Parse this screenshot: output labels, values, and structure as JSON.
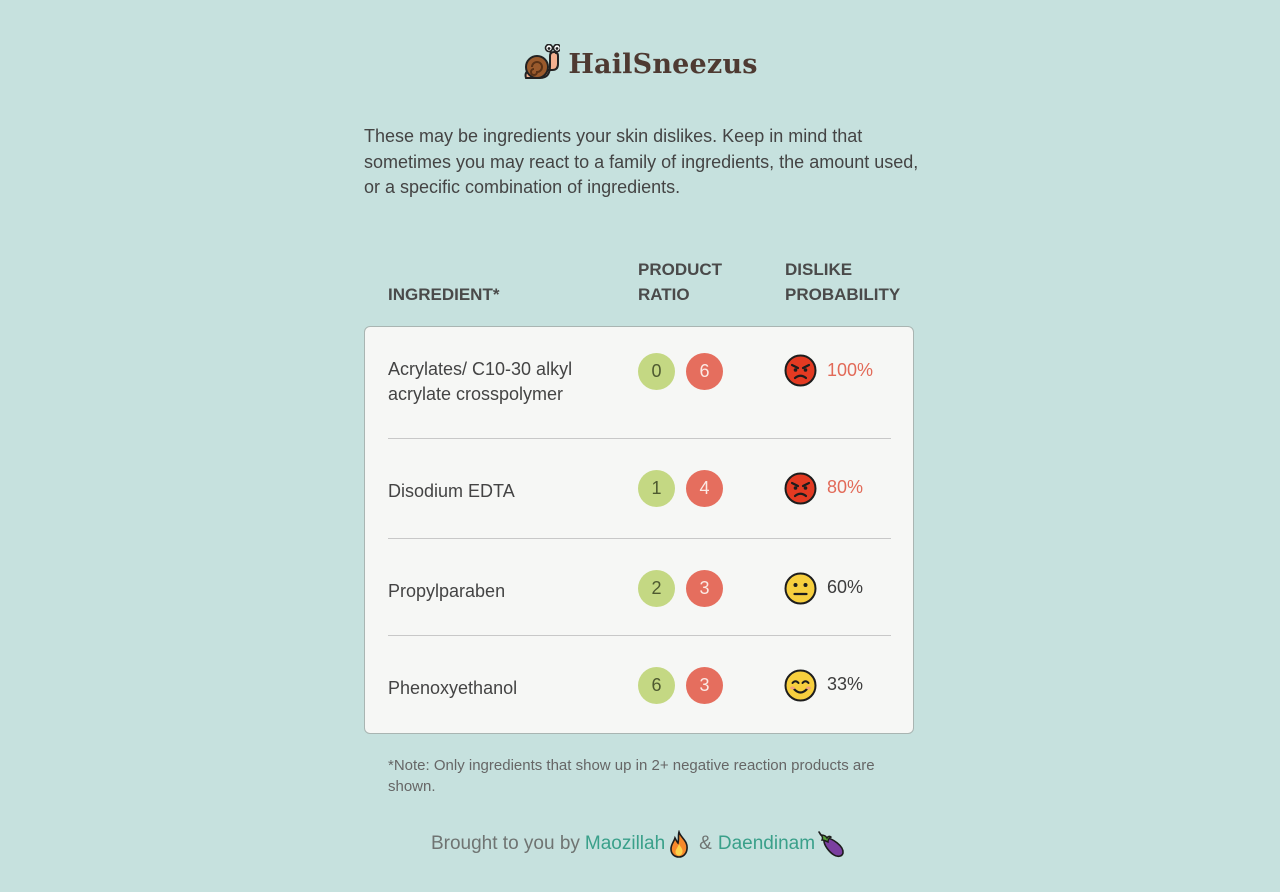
{
  "header": {
    "app_name": "HailSneezus",
    "logo_icon": "snail-icon"
  },
  "intro_text": "These may be ingredients your skin dislikes. Keep in mind that sometimes you may react to a family of ingredients, the amount used, or a specific combination of ingredients.",
  "table": {
    "headers": {
      "ingredient": "INGREDIENT*",
      "product_ratio_line1": "PRODUCT",
      "product_ratio_line2": "RATIO",
      "dislike_line1": "DISLIKE",
      "dislike_line2": "PROBABILITY"
    },
    "rows": [
      {
        "ingredient_line1": "Acrylates/ C10-30 alkyl",
        "ingredient_line2": "acrylate crosspolymer",
        "good_count": "0",
        "bad_count": "6",
        "face_icon": "angry-face-icon",
        "probability": "100%"
      },
      {
        "ingredient_line1": "Disodium EDTA",
        "ingredient_line2": "",
        "good_count": "1",
        "bad_count": "4",
        "face_icon": "angry-face-icon",
        "probability": "80%"
      },
      {
        "ingredient_line1": "Propylparaben",
        "ingredient_line2": "",
        "good_count": "2",
        "bad_count": "3",
        "face_icon": "neutral-face-icon",
        "probability": "60%"
      },
      {
        "ingredient_line1": "Phenoxyethanol",
        "ingredient_line2": "",
        "good_count": "6",
        "bad_count": "3",
        "face_icon": "smiling-face-icon",
        "probability": "33%"
      }
    ]
  },
  "note": "*Note: Only ingredients that show up in 2+ negative reaction products are shown.",
  "footer": {
    "prefix": "Brought to you by",
    "author1": "Maozillah",
    "author1_icon": "fire-icon",
    "separator": "&",
    "author2": "Daendinam",
    "author2_icon": "eggplant-icon"
  },
  "colors": {
    "background": "#c6e1de",
    "good_pill": "#c4d883",
    "bad_pill": "#e56e5e",
    "high_probability_text": "#e26a58",
    "link": "#3aa08a"
  }
}
